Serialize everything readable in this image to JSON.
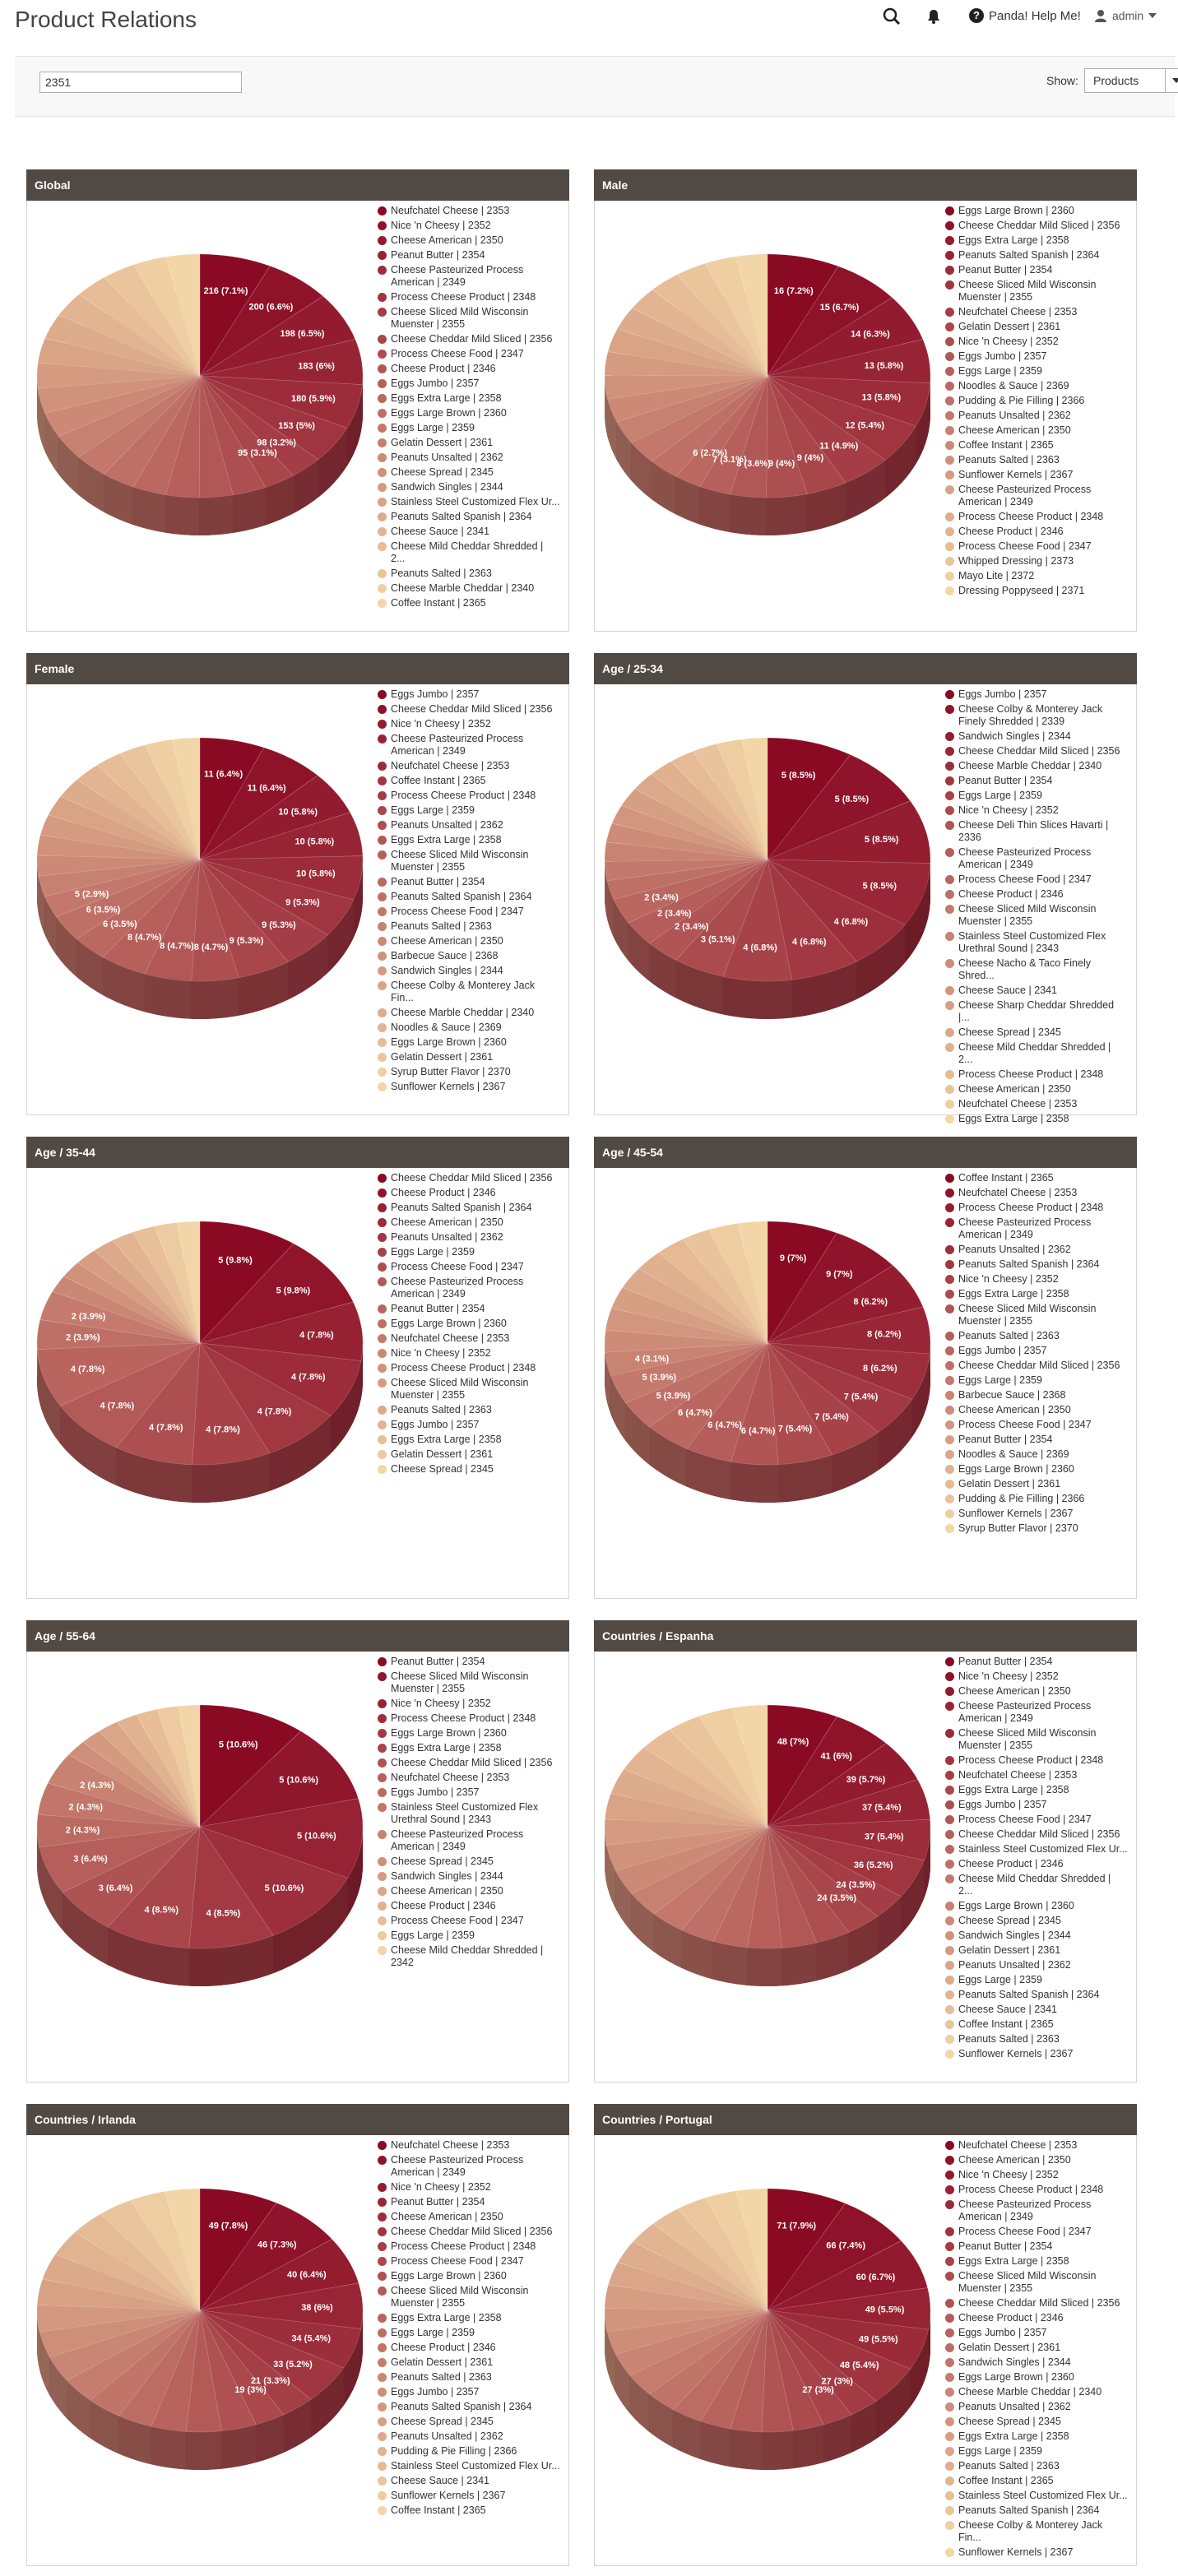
{
  "header": {
    "title": "Product Relations",
    "help_label": "Panda! Help Me!",
    "user_label": "admin"
  },
  "filter": {
    "search_value": "2351",
    "show_label": "Show:",
    "show_value": "Products"
  },
  "icons": [
    "search-icon",
    "bell-icon",
    "question-icon",
    "user-icon",
    "chevron-down-icon"
  ],
  "colors": {
    "header_bar": "#514943",
    "dark_red": "#8a0a24",
    "light_tan": "#f3d6a7"
  },
  "cards": [
    {
      "title": "Global",
      "pie_labels": [
        "216 (7.1%)",
        "200 (6.6%)",
        "198 (6.5%)",
        "183 (6%)",
        "180 (5.9%)",
        "153 (5%)",
        "98 (3.2%)",
        "95 (3.1%)"
      ],
      "legend": [
        "Neufchatel Cheese | 2353",
        "Nice 'n Cheesy | 2352",
        "Cheese American | 2350",
        "Peanut Butter | 2354",
        "Cheese Pasteurized Process American | 2349",
        "Process Cheese Product | 2348",
        "Cheese Sliced Mild Wisconsin Muenster | 2355",
        "Cheese Cheddar Mild Sliced | 2356",
        "Process Cheese Food | 2347",
        "Cheese Product | 2346",
        "Eggs Jumbo | 2357",
        "Eggs Extra Large | 2358",
        "Eggs Large Brown | 2360",
        "Eggs Large | 2359",
        "Gelatin Dessert | 2361",
        "Peanuts Unsalted | 2362",
        "Cheese Spread | 2345",
        "Sandwich Singles | 2344",
        "Stainless Steel Customized Flex Ur...",
        "Peanuts Salted Spanish | 2364",
        "Cheese Sauce | 2341",
        "Cheese Mild Cheddar Shredded | 2...",
        "Peanuts Salted | 2363",
        "Cheese Marble Cheddar | 2340",
        "Coffee Instant | 2365"
      ]
    },
    {
      "title": "Male",
      "pie_labels": [
        "16 (7.2%)",
        "15 (6.7%)",
        "14 (6.3%)",
        "13 (5.8%)",
        "13 (5.8%)",
        "12 (5.4%)",
        "11 (4.9%)",
        "9 (4%)",
        "9 (4%)",
        "8 (3.6%)",
        "7 (3.1%)",
        "6 (2.7%)"
      ],
      "legend": [
        "Eggs Large Brown | 2360",
        "Cheese Cheddar Mild Sliced | 2356",
        "Eggs Extra Large | 2358",
        "Peanuts Salted Spanish | 2364",
        "Peanut Butter | 2354",
        "Cheese Sliced Mild Wisconsin Muenster | 2355",
        "Neufchatel Cheese | 2353",
        "Gelatin Dessert | 2361",
        "Nice 'n Cheesy | 2352",
        "Eggs Jumbo | 2357",
        "Eggs Large | 2359",
        "Noodles & Sauce | 2369",
        "Pudding & Pie Filling | 2366",
        "Peanuts Unsalted | 2362",
        "Cheese American | 2350",
        "Coffee Instant | 2365",
        "Peanuts Salted | 2363",
        "Sunflower Kernels | 2367",
        "Cheese Pasteurized Process American | 2349",
        "Process Cheese Product | 2348",
        "Cheese Product | 2346",
        "Process Cheese Food | 2347",
        "Whipped Dressing | 2373",
        "Mayo Lite | 2372",
        "Dressing Poppyseed | 2371"
      ]
    },
    {
      "title": "Female",
      "pie_labels": [
        "11 (6.4%)",
        "11 (6.4%)",
        "10 (5.8%)",
        "10 (5.8%)",
        "10 (5.8%)",
        "9 (5.3%)",
        "9 (5.3%)",
        "9 (5.3%)",
        "8 (4.7%)",
        "8 (4.7%)",
        "8 (4.7%)",
        "6 (3.5%)",
        "6 (3.5%)",
        "5 (2.9%)"
      ],
      "legend": [
        "Eggs Jumbo | 2357",
        "Cheese Cheddar Mild Sliced | 2356",
        "Nice 'n Cheesy | 2352",
        "Cheese Pasteurized Process American | 2349",
        "Neufchatel Cheese | 2353",
        "Coffee Instant | 2365",
        "Process Cheese Product | 2348",
        "Eggs Large | 2359",
        "Peanuts Unsalted | 2362",
        "Eggs Extra Large | 2358",
        "Cheese Sliced Mild Wisconsin Muenster | 2355",
        "Peanut Butter | 2354",
        "Peanuts Salted Spanish | 2364",
        "Process Cheese Food | 2347",
        "Peanuts Salted | 2363",
        "Cheese American | 2350",
        "Barbecue Sauce | 2368",
        "Sandwich Singles | 2344",
        "Cheese Colby & Monterey Jack Fin...",
        "Cheese Marble Cheddar | 2340",
        "Noodles & Sauce | 2369",
        "Eggs Large Brown | 2360",
        "Gelatin Dessert | 2361",
        "Syrup Butter Flavor | 2370",
        "Sunflower Kernels | 2367"
      ]
    },
    {
      "title": "Age / 25-34",
      "pie_labels": [
        "5 (8.5%)",
        "5 (8.5%)",
        "5 (8.5%)",
        "5 (8.5%)",
        "4 (6.8%)",
        "4 (6.8%)",
        "4 (6.8%)",
        "3 (5.1%)",
        "2 (3.4%)",
        "2 (3.4%)",
        "2 (3.4%)"
      ],
      "legend": [
        "Eggs Jumbo | 2357",
        "Cheese Colby & Monterey Jack Finely Shredded | 2339",
        "Sandwich Singles | 2344",
        "Cheese Cheddar Mild Sliced | 2356",
        "Cheese Marble Cheddar | 2340",
        "Peanut Butter | 2354",
        "Eggs Large | 2359",
        "Nice 'n Cheesy | 2352",
        "Cheese Deli Thin Slices Havarti | 2336",
        "Cheese Pasteurized Process American | 2349",
        "Process Cheese Food | 2347",
        "Cheese Product | 2346",
        "Cheese Sliced Mild Wisconsin Muenster | 2355",
        "Stainless Steel Customized Flex Urethral Sound | 2343",
        "Cheese Nacho & Taco Finely Shred...",
        "Cheese Sauce | 2341",
        "Cheese Sharp Cheddar Shredded |...",
        "Cheese Spread | 2345",
        "Cheese Mild Cheddar Shredded | 2...",
        "Process Cheese Product | 2348",
        "Cheese American | 2350",
        "Neufchatel Cheese | 2353",
        "Eggs Extra Large | 2358"
      ]
    },
    {
      "title": "Age / 35-44",
      "pie_labels": [
        "5 (9.8%)",
        "5 (9.8%)",
        "4 (7.8%)",
        "4 (7.8%)",
        "4 (7.8%)",
        "4 (7.8%)",
        "4 (7.8%)",
        "4 (7.8%)",
        "4 (7.8%)",
        "2 (3.9%)",
        "2 (3.9%)"
      ],
      "legend": [
        "Cheese Cheddar Mild Sliced | 2356",
        "Cheese Product | 2346",
        "Peanuts Salted Spanish | 2364",
        "Cheese American | 2350",
        "Peanuts Unsalted | 2362",
        "Eggs Large | 2359",
        "Process Cheese Food | 2347",
        "Cheese Pasteurized Process American | 2349",
        "Peanut Butter | 2354",
        "Eggs Large Brown | 2360",
        "Neufchatel Cheese | 2353",
        "Nice 'n Cheesy | 2352",
        "Process Cheese Product | 2348",
        "Cheese Sliced Mild Wisconsin Muenster | 2355",
        "Peanuts Salted | 2363",
        "Eggs Jumbo | 2357",
        "Eggs Extra Large | 2358",
        "Gelatin Dessert | 2361",
        "Cheese Spread | 2345"
      ]
    },
    {
      "title": "Age / 45-54",
      "pie_labels": [
        "9 (7%)",
        "9 (7%)",
        "8 (6.2%)",
        "8 (6.2%)",
        "8 (6.2%)",
        "7 (5.4%)",
        "7 (5.4%)",
        "7 (5.4%)",
        "6 (4.7%)",
        "6 (4.7%)",
        "6 (4.7%)",
        "5 (3.9%)",
        "5 (3.9%)",
        "4 (3.1%)"
      ],
      "legend": [
        "Coffee Instant | 2365",
        "Neufchatel Cheese | 2353",
        "Process Cheese Product | 2348",
        "Cheese Pasteurized Process American | 2349",
        "Peanuts Unsalted | 2362",
        "Peanuts Salted Spanish | 2364",
        "Nice 'n Cheesy | 2352",
        "Eggs Extra Large | 2358",
        "Cheese Sliced Mild Wisconsin Muenster | 2355",
        "Peanuts Salted | 2363",
        "Eggs Jumbo | 2357",
        "Cheese Cheddar Mild Sliced | 2356",
        "Eggs Large | 2359",
        "Barbecue Sauce | 2368",
        "Cheese American | 2350",
        "Process Cheese Food | 2347",
        "Peanut Butter | 2354",
        "Noodles & Sauce | 2369",
        "Eggs Large Brown | 2360",
        "Gelatin Dessert | 2361",
        "Pudding & Pie Filling | 2366",
        "Sunflower Kernels | 2367",
        "Syrup Butter Flavor | 2370"
      ]
    },
    {
      "title": "Age / 55-64",
      "pie_labels": [
        "5 (10.6%)",
        "5 (10.6%)",
        "5 (10.6%)",
        "5 (10.6%)",
        "4 (8.5%)",
        "4 (8.5%)",
        "3 (6.4%)",
        "3 (6.4%)",
        "2 (4.3%)",
        "2 (4.3%)",
        "2 (4.3%)"
      ],
      "legend": [
        "Peanut Butter | 2354",
        "Cheese Sliced Mild Wisconsin Muenster | 2355",
        "Nice 'n Cheesy | 2352",
        "Process Cheese Product | 2348",
        "Eggs Large Brown | 2360",
        "Eggs Extra Large | 2358",
        "Cheese Cheddar Mild Sliced | 2356",
        "Neufchatel Cheese | 2353",
        "Eggs Jumbo | 2357",
        "Stainless Steel Customized Flex Urethral Sound | 2343",
        "Cheese Pasteurized Process American | 2349",
        "Cheese Spread | 2345",
        "Sandwich Singles | 2344",
        "Cheese American | 2350",
        "Cheese Product | 2346",
        "Process Cheese Food | 2347",
        "Eggs Large | 2359",
        "Cheese Mild Cheddar Shredded | 2342"
      ]
    },
    {
      "title": "Countries / Espanha",
      "pie_labels": [
        "48 (7%)",
        "41 (6%)",
        "39 (5.7%)",
        "37 (5.4%)",
        "37 (5.4%)",
        "36 (5.2%)",
        "24 (3.5%)",
        "24 (3.5%)"
      ],
      "legend": [
        "Peanut Butter | 2354",
        "Nice 'n Cheesy | 2352",
        "Cheese American | 2350",
        "Cheese Pasteurized Process American | 2349",
        "Cheese Sliced Mild Wisconsin Muenster | 2355",
        "Process Cheese Product | 2348",
        "Neufchatel Cheese | 2353",
        "Eggs Extra Large | 2358",
        "Eggs Jumbo | 2357",
        "Process Cheese Food | 2347",
        "Cheese Cheddar Mild Sliced | 2356",
        "Stainless Steel Customized Flex Ur...",
        "Cheese Product | 2346",
        "Cheese Mild Cheddar Shredded | 2...",
        "Eggs Large Brown | 2360",
        "Cheese Spread | 2345",
        "Sandwich Singles | 2344",
        "Gelatin Dessert | 2361",
        "Peanuts Unsalted | 2362",
        "Eggs Large | 2359",
        "Peanuts Salted Spanish | 2364",
        "Cheese Sauce | 2341",
        "Coffee Instant | 2365",
        "Peanuts Salted | 2363",
        "Sunflower Kernels | 2367"
      ]
    },
    {
      "title": "Countries / Irlanda",
      "pie_labels": [
        "49 (7.8%)",
        "46 (7.3%)",
        "40 (6.4%)",
        "38 (6%)",
        "34 (5.4%)",
        "33 (5.2%)",
        "21 (3.3%)",
        "19 (3%)"
      ],
      "legend": [
        "Neufchatel Cheese | 2353",
        "Cheese Pasteurized Process American | 2349",
        "Nice 'n Cheesy | 2352",
        "Peanut Butter | 2354",
        "Cheese American | 2350",
        "Cheese Cheddar Mild Sliced | 2356",
        "Process Cheese Product | 2348",
        "Process Cheese Food | 2347",
        "Eggs Large Brown | 2360",
        "Cheese Sliced Mild Wisconsin Muenster | 2355",
        "Eggs Extra Large | 2358",
        "Eggs Large | 2359",
        "Cheese Product | 2346",
        "Gelatin Dessert | 2361",
        "Peanuts Salted | 2363",
        "Eggs Jumbo | 2357",
        "Peanuts Salted Spanish | 2364",
        "Cheese Spread | 2345",
        "Peanuts Unsalted | 2362",
        "Pudding & Pie Filling | 2366",
        "Stainless Steel Customized Flex Ur...",
        "Cheese Sauce | 2341",
        "Sunflower Kernels | 2367",
        "Coffee Instant | 2365"
      ]
    },
    {
      "title": "Countries / Portugal",
      "pie_labels": [
        "71 (7.9%)",
        "66 (7.4%)",
        "60 (6.7%)",
        "49 (5.5%)",
        "49 (5.5%)",
        "48 (5.4%)",
        "27 (3%)",
        "27 (3%)"
      ],
      "legend": [
        "Neufchatel Cheese | 2353",
        "Cheese American | 2350",
        "Nice 'n Cheesy | 2352",
        "Process Cheese Product | 2348",
        "Cheese Pasteurized Process American | 2349",
        "Process Cheese Food | 2347",
        "Peanut Butter | 2354",
        "Eggs Extra Large | 2358",
        "Cheese Sliced Mild Wisconsin Muenster | 2355",
        "Cheese Cheddar Mild Sliced | 2356",
        "Cheese Product | 2346",
        "Eggs Jumbo | 2357",
        "Gelatin Dessert | 2361",
        "Sandwich Singles | 2344",
        "Eggs Large Brown | 2360",
        "Cheese Marble Cheddar | 2340",
        "Peanuts Unsalted | 2362",
        "Cheese Spread | 2345",
        "Eggs Extra Large | 2358",
        "Eggs Large | 2359",
        "Peanuts Salted | 2363",
        "Coffee Instant | 2365",
        "Stainless Steel Customized Flex Ur...",
        "Peanuts Salted Spanish | 2364",
        "Cheese Colby & Monterey Jack Fin...",
        "Sunflower Kernels | 2367"
      ]
    }
  ]
}
